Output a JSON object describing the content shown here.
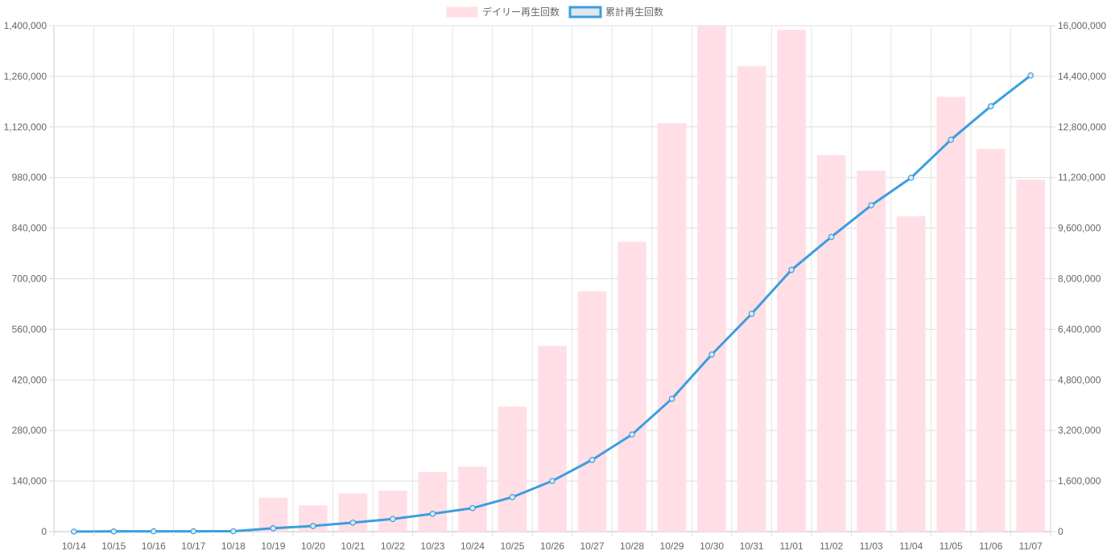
{
  "chart_data": {
    "type": "bar+line",
    "categories": [
      "10/14",
      "10/15",
      "10/16",
      "10/17",
      "10/18",
      "10/19",
      "10/20",
      "10/21",
      "10/22",
      "10/23",
      "10/24",
      "10/25",
      "10/26",
      "10/27",
      "10/28",
      "10/29",
      "10/30",
      "10/31",
      "11/01",
      "11/02",
      "11/03",
      "11/04",
      "11/05",
      "11/06",
      "11/07"
    ],
    "legend": [
      {
        "label": "デイリー再生回数",
        "color": "#ffdfe5",
        "border": "#ffdfe5"
      },
      {
        "label": "累計再生回数",
        "color": "#dfe7ef",
        "border": "#3b9ee0"
      }
    ],
    "series": [
      {
        "name": "デイリー再生回数",
        "type": "bar",
        "axis": "left",
        "color": "#ffdfe5",
        "values": [
          3000,
          5000,
          2000,
          1000,
          2000,
          94000,
          73000,
          106000,
          114000,
          165000,
          180000,
          346000,
          514000,
          665000,
          802000,
          1130000,
          1400000,
          1288000,
          1389000,
          1042000,
          999000,
          873000,
          1203000,
          1059000,
          974000
        ]
      },
      {
        "name": "累計再生回数",
        "type": "line",
        "axis": "right",
        "color": "#3b9ee0",
        "values": [
          3000,
          8000,
          10000,
          11000,
          13000,
          107000,
          180000,
          286000,
          400000,
          565000,
          745000,
          1091000,
          1605000,
          2270000,
          3072000,
          4202000,
          5602000,
          6890000,
          8279000,
          9321000,
          10320000,
          11193000,
          12396000,
          13455000,
          14429000
        ]
      }
    ],
    "y_left": {
      "min": 0,
      "max": 1400000,
      "tick_labels": [
        "0",
        "140,000",
        "280,000",
        "420,000",
        "560,000",
        "700,000",
        "840,000",
        "980,000",
        "1,120,000",
        "1,260,000",
        "1,400,000"
      ]
    },
    "y_right": {
      "min": 0,
      "max": 16000000,
      "tick_labels": [
        "0",
        "1,600,000",
        "3,200,000",
        "4,800,000",
        "6,400,000",
        "8,000,000",
        "9,600,000",
        "11,200,000",
        "12,800,000",
        "14,400,000",
        "16,000,000"
      ]
    },
    "grid": true,
    "legend_position": "top-center",
    "title": "",
    "xlabel": "",
    "ylabel": ""
  }
}
